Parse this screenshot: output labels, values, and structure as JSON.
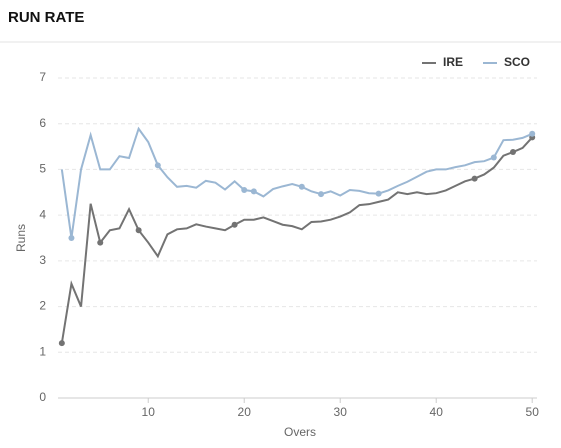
{
  "chart_data": {
    "type": "line",
    "title": "RUN RATE",
    "x_label": "Overs",
    "y_label": "Runs",
    "x": [
      1,
      2,
      3,
      4,
      5,
      6,
      7,
      8,
      9,
      10,
      11,
      12,
      13,
      14,
      15,
      16,
      17,
      18,
      19,
      20,
      21,
      22,
      23,
      24,
      25,
      26,
      27,
      28,
      29,
      30,
      31,
      32,
      33,
      34,
      35,
      36,
      37,
      38,
      39,
      40,
      41,
      42,
      43,
      44,
      45,
      46,
      47,
      48,
      49,
      50
    ],
    "series": [
      {
        "name": "IRE",
        "color": "#737373",
        "values": [
          1.2,
          2.5,
          2.0,
          4.25,
          3.4,
          3.67,
          3.71,
          4.13,
          3.67,
          3.4,
          3.1,
          3.58,
          3.69,
          3.71,
          3.8,
          3.75,
          3.71,
          3.67,
          3.79,
          3.9,
          3.9,
          3.95,
          3.87,
          3.79,
          3.76,
          3.69,
          3.85,
          3.86,
          3.9,
          3.97,
          4.06,
          4.22,
          4.24,
          4.29,
          4.34,
          4.5,
          4.46,
          4.5,
          4.46,
          4.48,
          4.54,
          4.64,
          4.74,
          4.8,
          4.89,
          5.04,
          5.3,
          5.38,
          5.47,
          5.7
        ],
        "markers": [
          0,
          4,
          8,
          18,
          43,
          47,
          49
        ]
      },
      {
        "name": "SCO",
        "color": "#9bb7d3",
        "values": [
          5.0,
          3.5,
          5.0,
          5.75,
          5.0,
          5.0,
          5.29,
          5.25,
          5.89,
          5.6,
          5.09,
          4.83,
          4.62,
          4.64,
          4.6,
          4.75,
          4.71,
          4.56,
          4.74,
          4.55,
          4.52,
          4.41,
          4.57,
          4.63,
          4.68,
          4.62,
          4.52,
          4.46,
          4.52,
          4.43,
          4.55,
          4.53,
          4.48,
          4.47,
          4.54,
          4.64,
          4.73,
          4.84,
          4.95,
          5.0,
          5.0,
          5.05,
          5.09,
          5.16,
          5.18,
          5.26,
          5.64,
          5.65,
          5.69,
          5.78
        ],
        "markers": [
          1,
          10,
          19,
          20,
          25,
          27,
          33,
          45,
          49
        ]
      }
    ],
    "xlim": [
      0.6,
      50.5
    ],
    "xticks": [
      10,
      20,
      30,
      40,
      50
    ],
    "ylim": [
      0,
      7
    ],
    "yticks": [
      0,
      1,
      2,
      3,
      4,
      5,
      6,
      7
    ],
    "grid": true,
    "legend": "top-right"
  }
}
